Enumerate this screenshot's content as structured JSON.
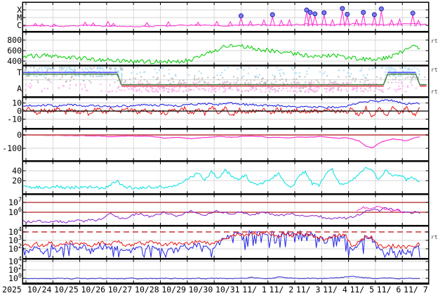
{
  "meta": {
    "year_label": "2025",
    "rt_label": "rt"
  },
  "colors": {
    "xray": "#ff2ed2",
    "flare_marker_fill": "#7d7dee",
    "flare_marker_stroke": "#2222aa",
    "wind": "#00cc00",
    "toward_dot": "#a5dcf7",
    "away_dot": "#fdaef0",
    "undetermined_dot": "#bdbdbd",
    "toward_line": "#4646ff",
    "away_line": "#ee3c55",
    "polarity_line": "#3e7a3e",
    "bt": "#1414e6",
    "bz": "#e61414",
    "dst": "#ff2ed2",
    "dst_zero": "#cc6666",
    "density": "#00e0e0",
    "electron": "#8c1ec8",
    "electron_alt": "#ff2ed2",
    "flux_line": "#b42222",
    "proton_red": "#e61414",
    "proton_blue": "#2222e6",
    "proton_threshold": "#c83232",
    "low_flux": "#2a2ac8",
    "grid": "#c8c8c8",
    "frame": "#000000",
    "text": "#000000"
  },
  "x_axis": {
    "day_labels": [
      "10/24",
      "10/25",
      "10/26",
      "10/27",
      "10/28",
      "10/29",
      "10/30",
      "10/31",
      "11/ 1",
      "11/ 2",
      "11/ 3",
      "11/ 4",
      "11/ 5",
      "11/ 6",
      "11/ 7"
    ]
  },
  "chart_data": {
    "type": "line",
    "x_domain_days": [
      -0.1,
      14.9
    ],
    "panels": {
      "xray_flux": {
        "y_tick_labels": [
          "X",
          "M",
          "C"
        ],
        "y_tick_values": [
          -4,
          -5,
          -6
        ],
        "grid_values": [
          -4,
          -5,
          -6
        ],
        "baseline": {
          "t0": -0.1,
          "dt": 0.5,
          "noise": 0.07,
          "values": [
            -6.1,
            -6.05,
            -6.1,
            -6.15,
            -6.05,
            -6.0,
            -6.1,
            -6.15,
            -6.2,
            -6.15,
            -6.1,
            -6.05,
            -6.0,
            -5.95,
            -6.0,
            -6.05,
            -6.0,
            -5.9,
            -5.95,
            -6.0,
            -5.9,
            -5.85,
            -5.9,
            -5.95,
            -5.85,
            -5.8,
            -5.85,
            -5.9,
            -5.85,
            -5.8,
            -5.85
          ]
        },
        "flares": [
          [
            0.35,
            -5.75,
            0
          ],
          [
            0.6,
            -5.8,
            0
          ],
          [
            1.05,
            -5.85,
            0
          ],
          [
            2.2,
            -5.6,
            0
          ],
          [
            2.5,
            -5.7,
            0
          ],
          [
            3.05,
            -5.5,
            0
          ],
          [
            3.25,
            -5.75,
            0
          ],
          [
            4.5,
            -5.65,
            0
          ],
          [
            5.3,
            -5.55,
            0
          ],
          [
            6.4,
            -5.6,
            0
          ],
          [
            7.1,
            -5.5,
            0
          ],
          [
            7.6,
            -5.55,
            0
          ],
          [
            8.0,
            -5.05,
            1
          ],
          [
            8.35,
            -5.45,
            0
          ],
          [
            8.85,
            -5.3,
            0
          ],
          [
            9.17,
            -4.9,
            1
          ],
          [
            9.5,
            -5.35,
            0
          ],
          [
            9.8,
            -5.3,
            0
          ],
          [
            10.44,
            -4.3,
            1
          ],
          [
            10.57,
            -4.6,
            1
          ],
          [
            10.75,
            -4.8,
            1
          ],
          [
            11.09,
            -4.65,
            1
          ],
          [
            11.4,
            -5.3,
            0
          ],
          [
            11.77,
            -4.1,
            1
          ],
          [
            11.95,
            -4.85,
            1
          ],
          [
            12.3,
            -5.25,
            0
          ],
          [
            12.55,
            -4.6,
            1
          ],
          [
            12.96,
            -4.9,
            1
          ],
          [
            13.22,
            -4.15,
            1
          ],
          [
            13.6,
            -5.3,
            0
          ],
          [
            13.9,
            -5.2,
            0
          ],
          [
            14.39,
            -4.7,
            1
          ],
          [
            14.6,
            -5.35,
            0
          ]
        ]
      },
      "solar_wind_speed": {
        "y_tick_labels": [
          "800",
          "600",
          "400"
        ],
        "y_tick_values": [
          800,
          600,
          400
        ],
        "series": {
          "t0": -0.1,
          "dt": 0.25,
          "noise": 40,
          "values": [
            490,
            500,
            495,
            505,
            505,
            500,
            490,
            475,
            460,
            450,
            440,
            432,
            425,
            420,
            415,
            408,
            400,
            394,
            390,
            386,
            392,
            398,
            394,
            390,
            405,
            430,
            470,
            520,
            575,
            630,
            680,
            700,
            690,
            670,
            650,
            630,
            612,
            595,
            578,
            562,
            545,
            528,
            512,
            500,
            492,
            500,
            508,
            496,
            470,
            455,
            445,
            435,
            430,
            442,
            465,
            505,
            565,
            625,
            670,
            645
          ]
        }
      },
      "imf_sector": {
        "y_tick_labels": [
          "T",
          "A"
        ],
        "polarity_segments": [
          {
            "level": "T",
            "t0": -0.1,
            "t1": 3.4
          },
          {
            "level": "A",
            "t0": 3.55,
            "t1": 13.3
          },
          {
            "level": "T",
            "t0": 13.45,
            "t1": 14.5
          },
          {
            "level": "A",
            "t0": 14.65,
            "t1": 14.9
          }
        ],
        "scatter_bands": [
          {
            "row": "T",
            "color": "toward",
            "t0": -0.1,
            "t1": 3.6,
            "density": 40
          },
          {
            "row": "T",
            "color": "toward",
            "t0": 3.6,
            "t1": 8.0,
            "density": 6
          },
          {
            "row": "T",
            "color": "toward",
            "t0": 8.0,
            "t1": 13.2,
            "density": 9
          },
          {
            "row": "T",
            "color": "toward",
            "t0": 13.2,
            "t1": 14.7,
            "density": 40
          },
          {
            "row": "A",
            "color": "away",
            "t0": -0.1,
            "t1": 3.5,
            "density": 10
          },
          {
            "row": "A",
            "color": "away",
            "t0": 3.5,
            "t1": 13.3,
            "density": 40
          },
          {
            "row": "A",
            "color": "away",
            "t0": 13.3,
            "t1": 14.9,
            "density": 12
          },
          {
            "row": "M",
            "color": "undetermined",
            "t0": -0.1,
            "t1": 14.9,
            "density": 10
          },
          {
            "row": "T",
            "color": "undetermined",
            "t0": -0.1,
            "t1": 3.6,
            "density": 12
          },
          {
            "row": "A",
            "color": "undetermined",
            "t0": 3.5,
            "t1": 13.3,
            "density": 8
          }
        ]
      },
      "imf_b": {
        "y_tick_labels": [
          "10",
          "0",
          "-10"
        ],
        "y_tick_values": [
          10,
          0,
          -10
        ],
        "bt": {
          "t0": -0.1,
          "dt": 0.25,
          "noise": 1.2,
          "values": [
            6,
            7,
            6,
            7,
            7,
            6,
            7,
            8,
            7,
            6,
            7,
            6,
            6,
            5,
            6,
            7,
            6,
            7,
            8,
            7,
            7,
            8,
            7,
            6,
            8,
            9,
            8,
            9,
            9,
            8,
            9,
            10,
            9,
            8,
            8,
            7,
            7,
            6,
            7,
            6,
            6,
            5,
            6,
            5,
            5,
            4,
            5,
            5,
            6,
            8,
            10,
            11,
            13,
            12,
            14,
            13,
            11,
            9,
            10,
            9
          ]
        },
        "bz": {
          "t0": -0.1,
          "dt": 0.25,
          "noise": 3.2,
          "values": [
            0,
            2,
            -2,
            1,
            -1,
            3,
            -3,
            2,
            -2,
            1,
            -4,
            3,
            -1,
            2,
            -3,
            1,
            2,
            -2,
            3,
            -1,
            1,
            -3,
            2,
            -2,
            3,
            -4,
            2,
            -3,
            4,
            -2,
            3,
            -5,
            2,
            -3,
            1,
            -2,
            1,
            -1,
            2,
            -1,
            0,
            1,
            -1,
            1,
            -1,
            0,
            1,
            0,
            -2,
            3,
            -6,
            4,
            -8,
            5,
            -7,
            6,
            -5,
            4,
            -6,
            3
          ]
        }
      },
      "dst": {
        "y_tick_labels": [
          "0",
          "-100"
        ],
        "y_tick_values": [
          0,
          -100
        ],
        "series": {
          "t0": -0.1,
          "dt": 0.25,
          "noise": 2,
          "values": [
            2,
            0,
            -3,
            -1,
            -4,
            -2,
            -5,
            -3,
            -6,
            -4,
            -8,
            -5,
            -10,
            -14,
            -10,
            -8,
            -6,
            -10,
            -8,
            -12,
            -15,
            -25,
            -20,
            -18,
            -22,
            -28,
            -24,
            -20,
            -16,
            -12,
            -15,
            -18,
            -14,
            -10,
            -8,
            -12,
            -16,
            -20,
            -18,
            -22,
            -20,
            -16,
            -18,
            -15,
            -12,
            -15,
            -20,
            -25,
            -20,
            -30,
            -45,
            -85,
            -95,
            -60,
            -40,
            -30,
            -35,
            -45,
            -25,
            -15
          ]
        }
      },
      "plasma_density": {
        "y_tick_labels": [
          "40",
          "20"
        ],
        "y_tick_values": [
          40,
          20
        ],
        "series": {
          "t0": -0.1,
          "dt": 0.25,
          "noise": 3,
          "values": [
            8,
            6,
            7,
            5,
            6,
            8,
            6,
            5,
            7,
            6,
            8,
            6,
            5,
            12,
            18,
            8,
            6,
            5,
            7,
            6,
            8,
            6,
            9,
            12,
            18,
            28,
            35,
            22,
            38,
            25,
            42,
            30,
            20,
            32,
            15,
            10,
            18,
            25,
            35,
            12,
            8,
            30,
            38,
            14,
            10,
            35,
            42,
            15,
            12,
            20,
            35,
            48,
            38,
            22,
            42,
            28,
            32,
            22,
            26,
            16
          ]
        }
      },
      "electron_flux": {
        "y_tick_labels": [
          "10^7",
          "10^6"
        ],
        "y_tick_values": [
          7,
          6
        ],
        "series": {
          "t0": -0.1,
          "dt": 0.25,
          "noise": 0.12,
          "values": [
            5.1,
            5.0,
            5.15,
            5.05,
            5.0,
            5.1,
            5.05,
            5.0,
            5.2,
            5.1,
            5.3,
            5.15,
            5.5,
            5.9,
            5.5,
            5.3,
            5.6,
            5.9,
            5.7,
            5.5,
            5.8,
            6.0,
            5.8,
            5.6,
            5.9,
            6.1,
            5.9,
            5.7,
            6.0,
            6.15,
            5.95,
            5.8,
            6.05,
            5.9,
            5.7,
            5.9,
            6.0,
            5.8,
            5.6,
            5.8,
            5.9,
            5.7,
            5.5,
            5.7,
            5.6,
            5.4,
            5.3,
            5.5,
            5.4,
            5.5,
            5.8,
            6.1,
            6.3,
            6.2,
            6.4,
            6.3,
            6.1,
            5.9,
            6.0,
            5.95
          ]
        },
        "series_alt": {
          "t0": 12.3,
          "dt": 0.25,
          "noise": 0.1,
          "values": [
            6.2,
            6.5,
            6.3,
            6.6,
            6.4,
            6.1,
            6.3,
            6.0
          ]
        }
      },
      "proton_flux": {
        "y_tick_labels": [
          "10^4",
          "10^3",
          "10^2"
        ],
        "y_tick_values": [
          4,
          3,
          2
        ],
        "threshold_value": 4,
        "red": {
          "t0": -0.1,
          "dt": 0.25,
          "noise": 0.22,
          "values": [
            2.5,
            2.2,
            2.6,
            2.3,
            2.7,
            2.4,
            2.6,
            2.8,
            2.5,
            2.7,
            2.4,
            2.6,
            2.8,
            2.6,
            2.9,
            2.5,
            2.4,
            2.7,
            2.5,
            2.8,
            2.6,
            2.4,
            2.7,
            2.5,
            2.8,
            2.6,
            2.9,
            2.7,
            2.5,
            2.8,
            3.2,
            3.5,
            3.7,
            3.6,
            3.8,
            3.7,
            3.9,
            3.7,
            3.5,
            3.8,
            3.6,
            3.9,
            3.7,
            3.5,
            3.4,
            3.0,
            3.5,
            3.7,
            3.5,
            2.2,
            2.8,
            3.4,
            3.3,
            2.3,
            2.2,
            2.4,
            2.3,
            2.2,
            2.4,
            2.6
          ]
        },
        "blue": {
          "t0": -0.1,
          "dt": 0.25,
          "noise": 0.3,
          "dip": 0.9,
          "values": [
            2.2,
            1.8,
            2.3,
            1.6,
            2.4,
            1.7,
            2.2,
            2.5,
            1.9,
            2.3,
            1.7,
            2.2,
            2.5,
            2.0,
            2.6,
            1.8,
            1.7,
            2.3,
            1.9,
            2.4,
            2.1,
            1.7,
            2.3,
            1.9,
            2.4,
            2.0,
            2.5,
            2.2,
            1.9,
            2.6,
            3.3,
            3.7,
            3.9,
            3.7,
            4.0,
            3.8,
            4.0,
            3.8,
            3.6,
            3.9,
            3.7,
            4.0,
            3.8,
            3.6,
            3.5,
            2.8,
            3.6,
            3.8,
            3.4,
            1.8,
            2.6,
            3.5,
            3.0,
            1.8,
            1.6,
            1.9,
            1.7,
            1.6,
            1.9,
            2.3
          ]
        }
      },
      "background_flux": {
        "y_tick_labels": [
          "10^4",
          "10^2",
          "10^0"
        ],
        "y_tick_values": [
          4,
          2,
          0
        ],
        "series": {
          "t0": -0.1,
          "dt": 0.25,
          "noise": 0.1,
          "values": [
            0,
            -0.1,
            0,
            -0.05,
            -0.1,
            0,
            -0.05,
            -0.1,
            0,
            -0.05,
            -0.1,
            0,
            -0.05,
            0,
            -0.1,
            -0.05,
            0,
            -0.1,
            0,
            -0.05,
            -0.1,
            0,
            -0.05,
            0,
            -0.1,
            -0.05,
            0,
            -0.1,
            0,
            -0.05,
            0,
            -0.1,
            0,
            -0.05,
            0.25,
            0.1,
            -0.05,
            0,
            0.3,
            0.15,
            0,
            -0.05,
            0,
            0.05,
            -0.05,
            0,
            0.05,
            0.1,
            0.4,
            0.45,
            0.25,
            0.1,
            0,
            -0.05,
            0.05,
            0,
            -0.1,
            0,
            -0.05,
            -0.1
          ]
        }
      }
    }
  }
}
